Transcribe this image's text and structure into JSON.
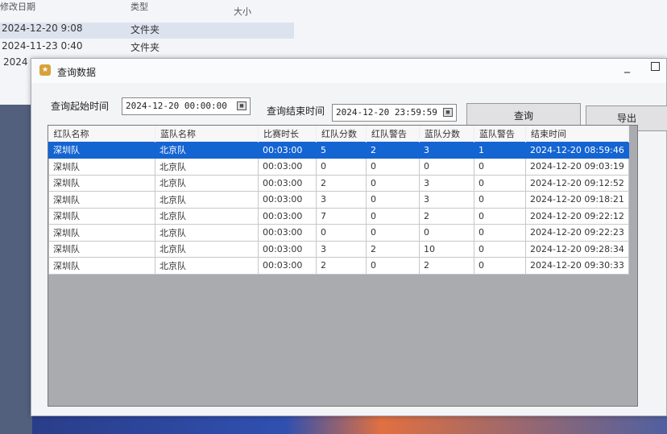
{
  "explorer": {
    "headers": [
      "修改日期",
      "类型",
      "大小"
    ],
    "rows": [
      {
        "date": "2024-12-20 9:08",
        "type": "文件夹"
      },
      {
        "date": "2024-11-23 0:40",
        "type": "文件夹"
      },
      {
        "date": "2024",
        "type": ""
      }
    ]
  },
  "window": {
    "title": "查询数据",
    "minimize": "_"
  },
  "query": {
    "start_label": "查询起始时间",
    "start_value": "2024-12-20 00:00:00",
    "end_label": "查询结束时间",
    "end_value": "2024-12-20 23:59:59",
    "search_button": "查询",
    "export_button": "导出"
  },
  "table": {
    "headers": [
      "红队名称",
      "蓝队名称",
      "比赛时长",
      "红队分数",
      "红队警告",
      "蓝队分数",
      "蓝队警告",
      "结束时间"
    ],
    "rows": [
      [
        "深圳队",
        "北京队",
        "00:03:00",
        "5",
        "2",
        "3",
        "1",
        "2024-12-20 08:59:46"
      ],
      [
        "深圳队",
        "北京队",
        "00:03:00",
        "0",
        "0",
        "0",
        "0",
        "2024-12-20 09:03:19"
      ],
      [
        "深圳队",
        "北京队",
        "00:03:00",
        "2",
        "0",
        "3",
        "0",
        "2024-12-20 09:12:52"
      ],
      [
        "深圳队",
        "北京队",
        "00:03:00",
        "3",
        "0",
        "3",
        "0",
        "2024-12-20 09:18:21"
      ],
      [
        "深圳队",
        "北京队",
        "00:03:00",
        "7",
        "0",
        "2",
        "0",
        "2024-12-20 09:22:12"
      ],
      [
        "深圳队",
        "北京队",
        "00:03:00",
        "0",
        "0",
        "0",
        "0",
        "2024-12-20 09:22:23"
      ],
      [
        "深圳队",
        "北京队",
        "00:03:00",
        "3",
        "2",
        "10",
        "0",
        "2024-12-20 09:28:34"
      ],
      [
        "深圳队",
        "北京队",
        "00:03:00",
        "2",
        "0",
        "2",
        "0",
        "2024-12-20 09:30:33"
      ]
    ],
    "selected_row": 0
  },
  "colors": {
    "selection": "#1464d2"
  }
}
